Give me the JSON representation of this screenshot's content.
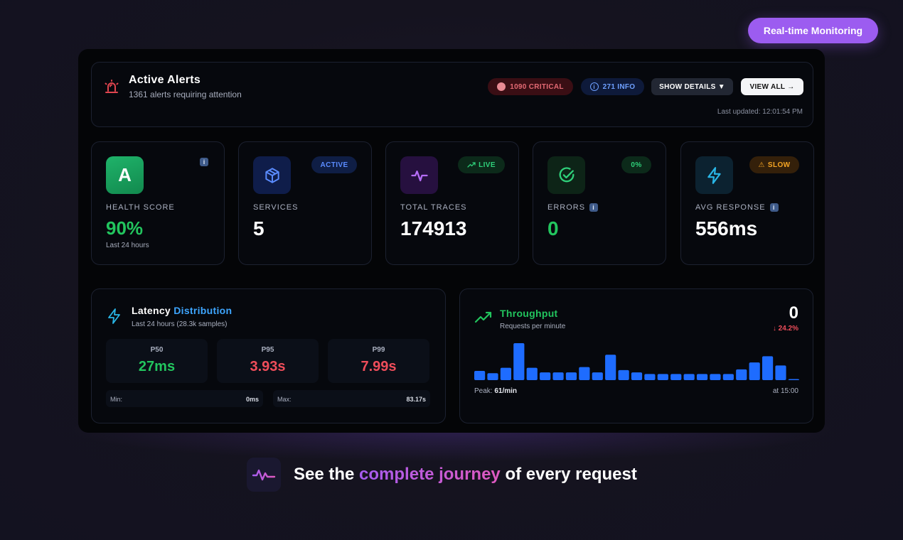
{
  "header": {
    "realtime_label": "Real-time Monitoring"
  },
  "alerts": {
    "title": "Active Alerts",
    "subtitle": "1361 alerts requiring attention",
    "critical_label": "1090 CRITICAL",
    "info_label": "271 INFO",
    "details_label": "SHOW DETAILS ▼",
    "view_all_label": "VIEW ALL →",
    "updated": "Last updated: 12:01:54 PM"
  },
  "stats": {
    "health": {
      "grade": "A",
      "label": "HEALTH SCORE",
      "value": "90%",
      "note": "Last 24 hours",
      "info": "i"
    },
    "services": {
      "label": "SERVICES",
      "value": "5",
      "badge": "ACTIVE"
    },
    "traces": {
      "label": "TOTAL TRACES",
      "value": "174913",
      "badge": "LIVE"
    },
    "errors": {
      "label": "ERRORS",
      "value": "0",
      "badge": "0%",
      "info": "i"
    },
    "response": {
      "label": "AVG RESPONSE",
      "value": "556ms",
      "badge": "SLOW",
      "info": "i"
    }
  },
  "latency": {
    "title_a": "Latency",
    "title_b": "Distribution",
    "subtitle": "Last 24 hours (28.3k samples)",
    "p50_label": "P50",
    "p50_value": "27ms",
    "p95_label": "P95",
    "p95_value": "3.93s",
    "p99_label": "P99",
    "p99_value": "7.99s",
    "min_label": "Min:",
    "min_value": "0ms",
    "max_label": "Max:",
    "max_value": "83.17s"
  },
  "throughput": {
    "title": "Throughput",
    "subtitle": "Requests per minute",
    "current": "0",
    "change": "↓ 24.2%",
    "peak_label": "Peak:",
    "peak_value": "61/min",
    "peak_time": "at 15:00",
    "bars": [
      12,
      9,
      16,
      48,
      16,
      10,
      10,
      10,
      17,
      10,
      33,
      13,
      10,
      8,
      8,
      8,
      8,
      8,
      8,
      8,
      14,
      23,
      31,
      19,
      1
    ]
  },
  "tagline": {
    "pre": "See the",
    "accent": "complete journey",
    "post": "of every request"
  },
  "colors": {
    "accent": "#9c5cf0",
    "green": "#22c55e",
    "red": "#ef4d5a",
    "blue": "#1e6cff"
  }
}
